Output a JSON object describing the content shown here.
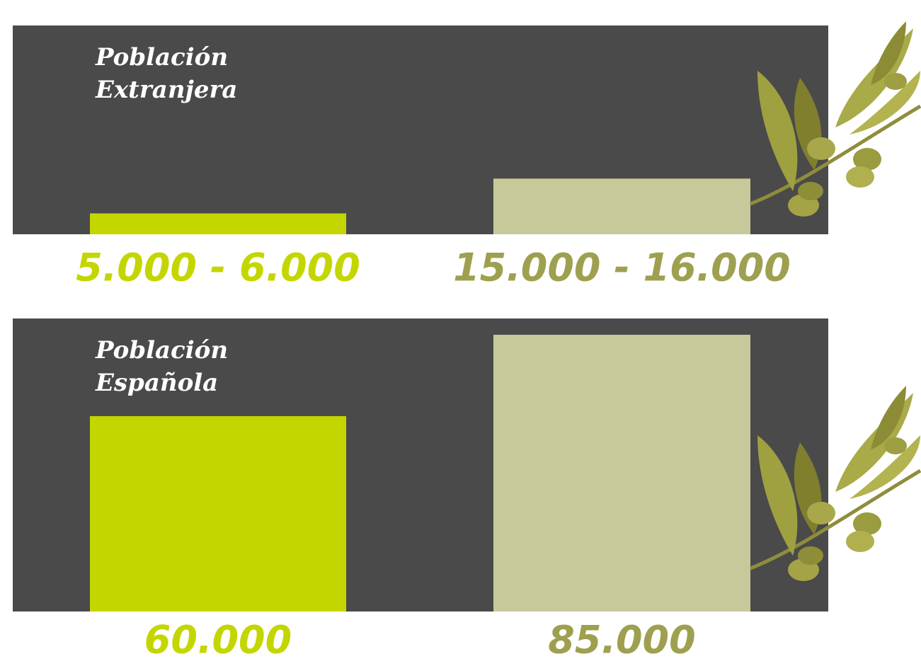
{
  "chart_data": [
    {
      "type": "bar",
      "title": "Población Extranjera",
      "values": [
        [
          5000,
          6000
        ],
        [
          15000,
          16000
        ]
      ],
      "value_labels": [
        "5.000 - 6.000",
        "15.000 - 16.000"
      ],
      "colors": [
        "#c4d600",
        "#c8c99a"
      ],
      "label_colors": [
        "#c4d600",
        "#9ea04f"
      ],
      "ylim": [
        0,
        60000
      ]
    },
    {
      "type": "bar",
      "title": "Población Española",
      "values": [
        60000,
        85000
      ],
      "value_labels": [
        "60.000",
        "85.000"
      ],
      "colors": [
        "#c4d600",
        "#c8c99a"
      ],
      "label_colors": [
        "#c4d600",
        "#9ea04f"
      ],
      "ylim": [
        0,
        90000
      ]
    }
  ]
}
